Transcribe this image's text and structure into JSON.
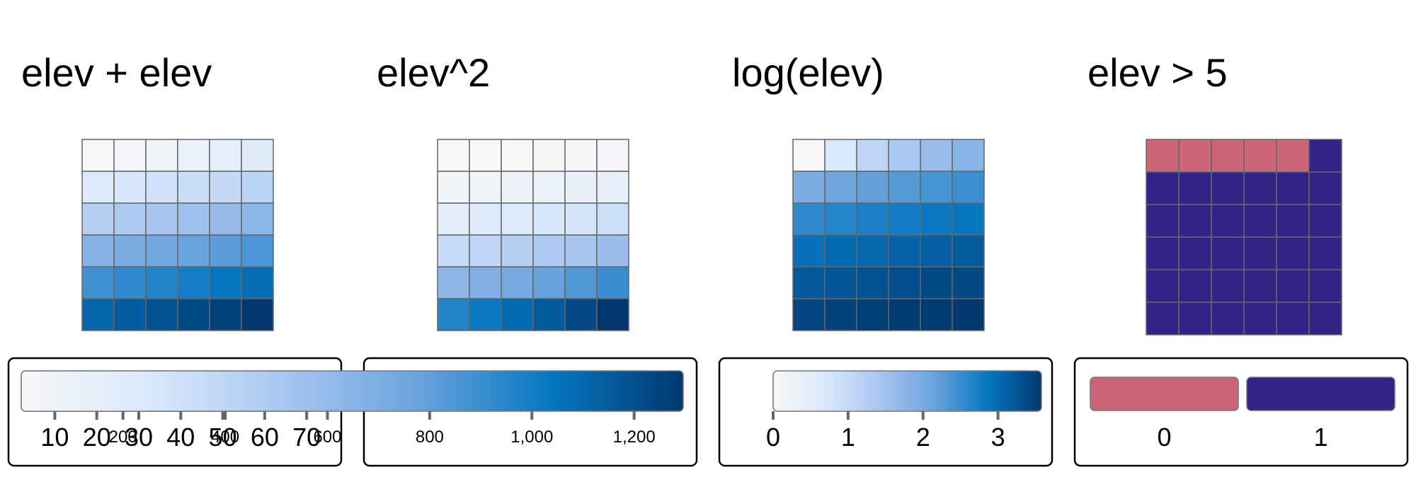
{
  "chart_data": [
    {
      "type": "heatmap",
      "title": "elev + elev",
      "rows": 6,
      "cols": 6,
      "values": [
        [
          2,
          4,
          6,
          8,
          10,
          12
        ],
        [
          14,
          16,
          18,
          20,
          22,
          24
        ],
        [
          26,
          28,
          30,
          32,
          34,
          36
        ],
        [
          38,
          40,
          42,
          44,
          46,
          48
        ],
        [
          50,
          52,
          54,
          56,
          58,
          60
        ],
        [
          62,
          64,
          66,
          68,
          70,
          72
        ]
      ],
      "legend": {
        "type": "continuous",
        "min": 2,
        "max": 72,
        "ticks": [
          10,
          20,
          30,
          40,
          50,
          60,
          70
        ],
        "tick_labels": [
          "10",
          "20",
          "30",
          "40",
          "50",
          "60",
          "70"
        ]
      }
    },
    {
      "type": "heatmap",
      "title": "elev^2",
      "rows": 6,
      "cols": 6,
      "values": [
        [
          1,
          4,
          9,
          16,
          25,
          36
        ],
        [
          49,
          64,
          81,
          100,
          121,
          144
        ],
        [
          169,
          196,
          225,
          256,
          289,
          324
        ],
        [
          361,
          400,
          441,
          484,
          529,
          576
        ],
        [
          625,
          676,
          729,
          784,
          841,
          900
        ],
        [
          961,
          1024,
          1089,
          1156,
          1225,
          1296
        ]
      ],
      "legend": {
        "type": "continuous",
        "min": 1,
        "max": 1296,
        "ticks": [
          200,
          400,
          600,
          800,
          1000,
          1200
        ],
        "tick_labels": [
          "200",
          "400",
          "600",
          "800",
          "1,000",
          "1,200"
        ]
      }
    },
    {
      "type": "heatmap",
      "title": "log(elev)",
      "rows": 6,
      "cols": 6,
      "values": [
        [
          0,
          0.69,
          1.1,
          1.39,
          1.61,
          1.79
        ],
        [
          1.95,
          2.08,
          2.2,
          2.3,
          2.4,
          2.48
        ],
        [
          2.56,
          2.64,
          2.71,
          2.77,
          2.83,
          2.89
        ],
        [
          2.94,
          3.0,
          3.04,
          3.09,
          3.14,
          3.18
        ],
        [
          3.22,
          3.26,
          3.3,
          3.33,
          3.37,
          3.4
        ],
        [
          3.43,
          3.47,
          3.5,
          3.53,
          3.56,
          3.58
        ]
      ],
      "legend": {
        "type": "continuous",
        "min": 0,
        "max": 3.58,
        "ticks": [
          0,
          1,
          2,
          3
        ],
        "tick_labels": [
          "0",
          "1",
          "2",
          "3"
        ]
      }
    },
    {
      "type": "heatmap",
      "title": "elev > 5",
      "rows": 6,
      "cols": 6,
      "values": [
        [
          0,
          0,
          0,
          0,
          0,
          1
        ],
        [
          1,
          1,
          1,
          1,
          1,
          1
        ],
        [
          1,
          1,
          1,
          1,
          1,
          1
        ],
        [
          1,
          1,
          1,
          1,
          1,
          1
        ],
        [
          1,
          1,
          1,
          1,
          1,
          1
        ],
        [
          1,
          1,
          1,
          1,
          1,
          1
        ]
      ],
      "legend": {
        "type": "categorical",
        "categories": [
          "0",
          "1"
        ],
        "colors": [
          "#cc6677",
          "#332288"
        ]
      }
    }
  ],
  "colors": {
    "ramp": [
      "#f7f7f7",
      "#d8e8fc",
      "#a7c5f0",
      "#6aa3dd",
      "#0577c1",
      "#01386f"
    ],
    "cell_border": "#666666",
    "legend_border": "#000000"
  }
}
